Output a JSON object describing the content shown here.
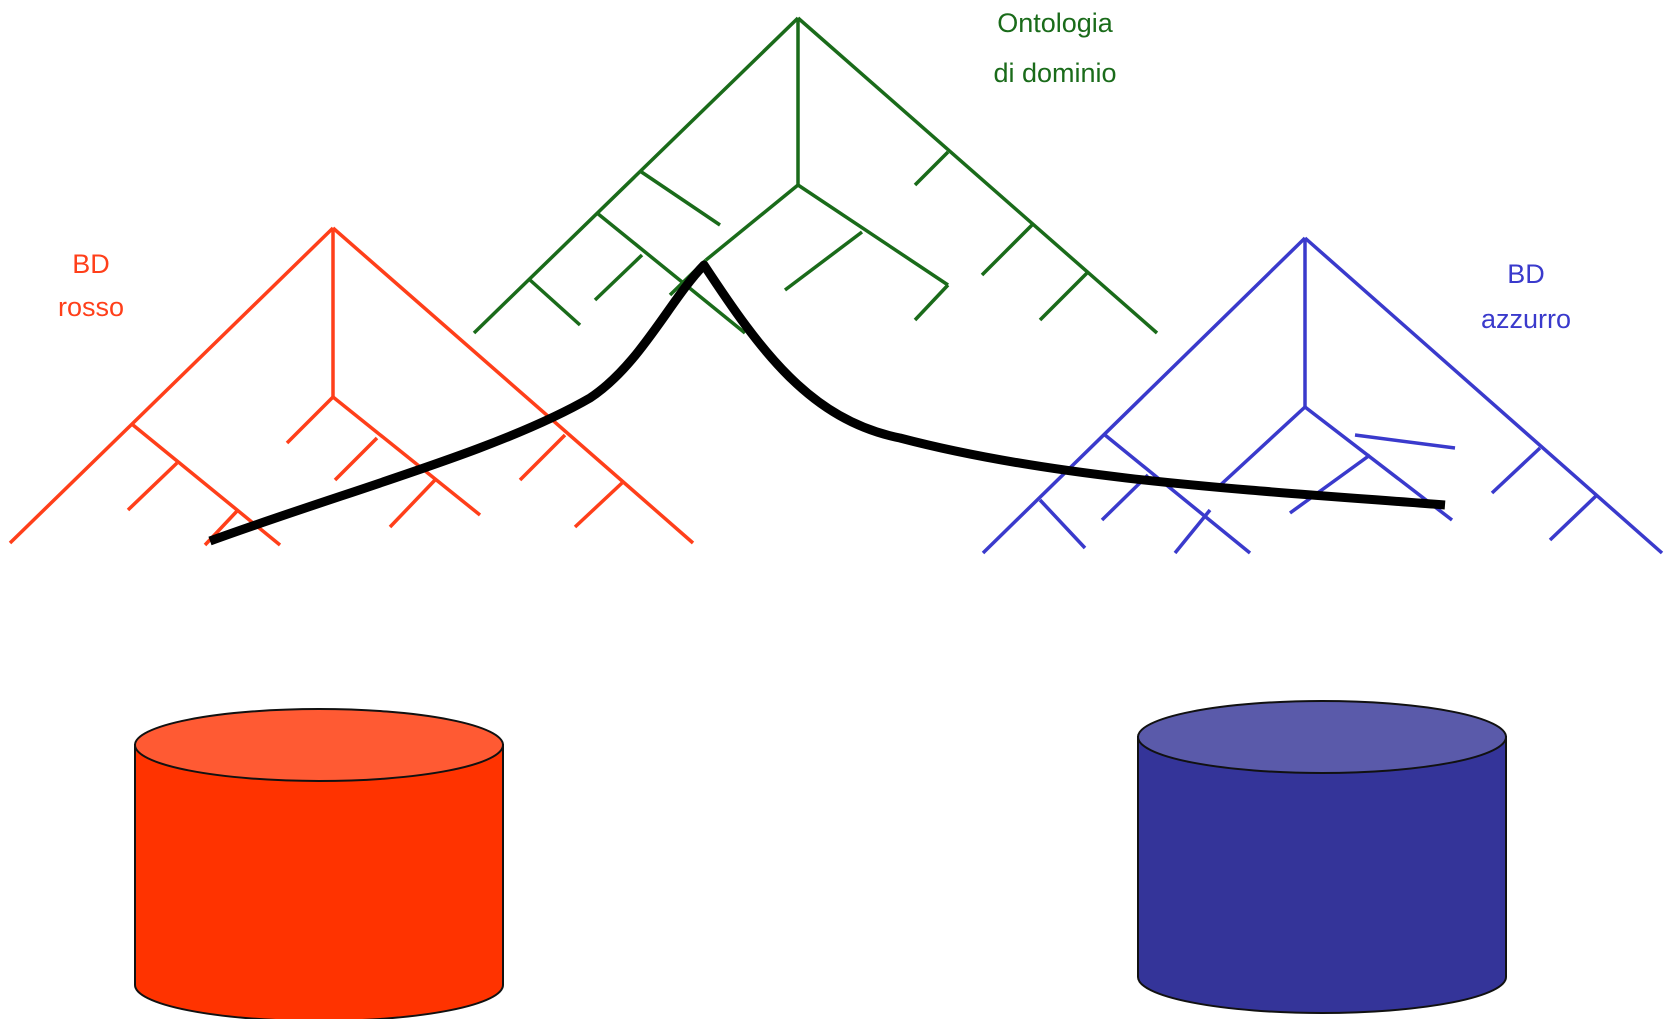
{
  "labels": {
    "ontology_line1": "Ontologia",
    "ontology_line2": "di dominio",
    "red_line1": "BD",
    "red_line2": "rosso",
    "blue_line1": "BD",
    "blue_line2": "azzurro"
  },
  "colors": {
    "ontology": "#1a6b1a",
    "red_tree": "#ff3f1a",
    "blue_tree": "#3a3acc",
    "red_db_body": "#ff3300",
    "red_db_top": "#ff5a33",
    "blue_db_body": "#343499",
    "blue_db_top": "#5a5aaa",
    "mapping_path": "#000000"
  },
  "icons": {
    "red_database": "database-cylinder-icon",
    "blue_database": "database-cylinder-icon"
  }
}
